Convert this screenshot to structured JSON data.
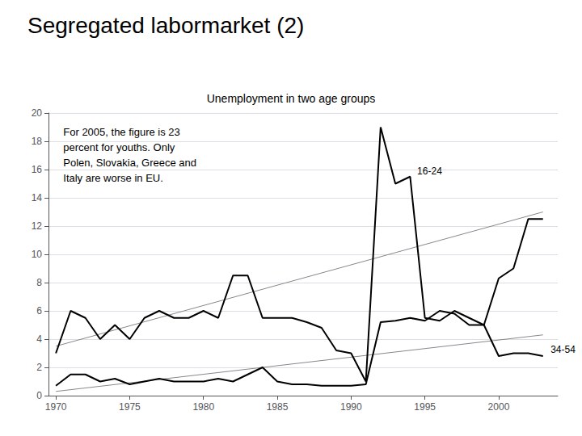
{
  "chart_data": {
    "type": "line",
    "title": "Segregated labormarket (2)",
    "subtitle": "Unemployment in two age groups",
    "annotations": [
      "For 2005, the figure is 23\npercent for youths. Only\nPolen, Slovakia, Greece and\nItaly are worse in EU."
    ],
    "series": [
      {
        "color": "#888888",
        "line_style": "thin",
        "x": [
          1970,
          2003
        ],
        "values": [
          3.5,
          13.0
        ]
      },
      {
        "color": "#888888",
        "line_style": "thin",
        "x": [
          1970,
          2003
        ],
        "values": [
          0.3,
          4.3
        ]
      },
      {
        "name": "16-24",
        "color": "#000000",
        "line_style": "solid",
        "x": [
          1970,
          1971,
          1972,
          1973,
          1974,
          1975,
          1976,
          1977,
          1978,
          1979,
          1980,
          1981,
          1982,
          1983,
          1984,
          1985,
          1986,
          1987,
          1988,
          1989,
          1990,
          1991,
          1992,
          1993,
          1994,
          1995,
          1996,
          1997,
          1998,
          1999,
          2000,
          2001,
          2002,
          2003
        ],
        "values": [
          3.0,
          6.0,
          5.5,
          4.0,
          5.0,
          4.0,
          5.5,
          6.0,
          5.5,
          5.5,
          6.0,
          5.5,
          8.5,
          8.5,
          5.5,
          5.5,
          5.5,
          5.2,
          4.8,
          3.2,
          3.0,
          1.0,
          19.0,
          15.0,
          15.5,
          5.5,
          5.3,
          6.0,
          5.5,
          5.0,
          8.3,
          9.0,
          12.5,
          12.5
        ]
      },
      {
        "name": "34-54",
        "color": "#000000",
        "line_style": "solid",
        "x": [
          1970,
          1971,
          1972,
          1973,
          1974,
          1975,
          1976,
          1977,
          1978,
          1979,
          1980,
          1981,
          1982,
          1983,
          1984,
          1985,
          1986,
          1987,
          1988,
          1989,
          1990,
          1991,
          1992,
          1993,
          1994,
          1995,
          1996,
          1997,
          1998,
          1999,
          2000,
          2001,
          2002,
          2003
        ],
        "values": [
          0.7,
          1.5,
          1.5,
          1.0,
          1.2,
          0.8,
          1.0,
          1.2,
          1.0,
          1.0,
          1.0,
          1.2,
          1.0,
          1.5,
          2.0,
          1.0,
          0.8,
          0.8,
          0.7,
          0.7,
          0.7,
          0.8,
          5.2,
          5.3,
          5.5,
          5.3,
          6.0,
          5.8,
          5.0,
          5.0,
          2.8,
          3.0,
          3.0,
          2.8
        ]
      }
    ],
    "xlim": [
      1969.5,
      2004
    ],
    "xticks": [
      1970,
      1975,
      1980,
      1985,
      1990,
      1995,
      2000
    ],
    "ylim": [
      0,
      20
    ],
    "yticks": [
      0,
      2,
      4,
      6,
      8,
      10,
      12,
      14,
      16,
      18,
      20
    ],
    "grid": true
  }
}
